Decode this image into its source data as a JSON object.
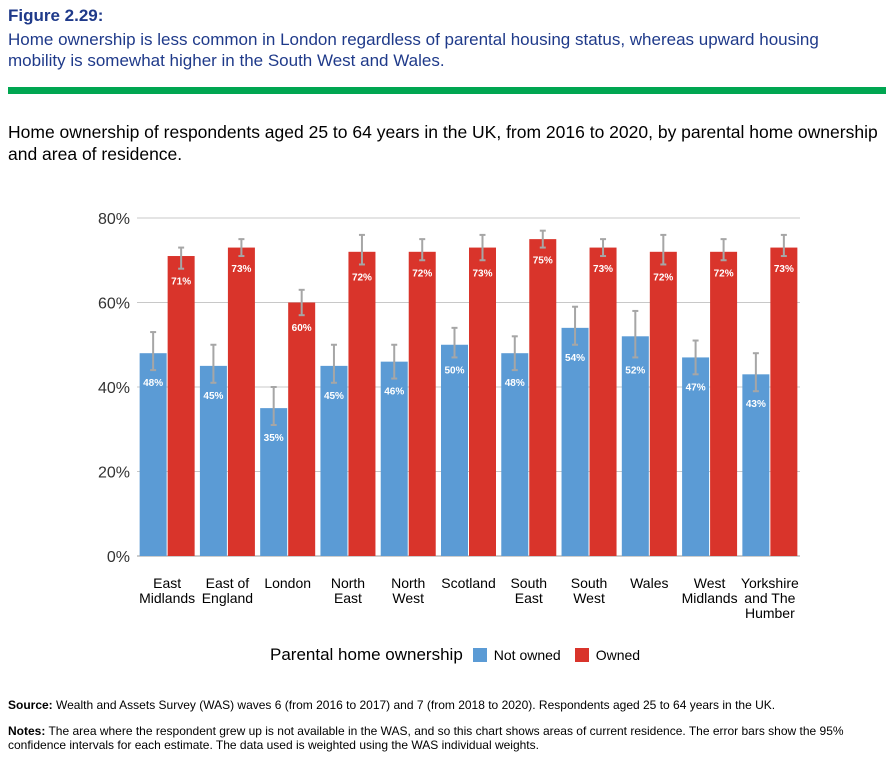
{
  "figure": {
    "label": "Figure 2.29:",
    "title": "Home ownership is less common in London regardless of parental housing status, whereas upward housing mobility is somewhat higher in the South West and Wales."
  },
  "chart_title": "Home ownership of respondents aged 25 to 64 years in the UK, from 2016 to 2020, by parental home ownership and area of residence.",
  "chart_data": {
    "type": "bar",
    "categories": [
      [
        "East",
        "Midlands"
      ],
      [
        "East of",
        "England"
      ],
      [
        "London"
      ],
      [
        "North",
        "East"
      ],
      [
        "North",
        "West"
      ],
      [
        "Scotland"
      ],
      [
        "South",
        "East"
      ],
      [
        "South",
        "West"
      ],
      [
        "Wales"
      ],
      [
        "West",
        "Midlands"
      ],
      [
        "Yorkshire",
        "and The",
        "Humber"
      ]
    ],
    "series": [
      {
        "name": "Not owned",
        "color": "#5b9bd5",
        "values": [
          48,
          45,
          35,
          45,
          46,
          50,
          48,
          54,
          52,
          47,
          43
        ],
        "labels": [
          "48%",
          "45%",
          "35%",
          "45%",
          "46%",
          "50%",
          "48%",
          "54%",
          "52%",
          "47%",
          "43%"
        ],
        "ci_low": [
          44,
          41,
          31,
          41,
          42,
          47,
          44,
          50,
          47,
          43,
          39
        ],
        "ci_high": [
          53,
          50,
          40,
          50,
          50,
          54,
          52,
          59,
          58,
          51,
          48
        ]
      },
      {
        "name": "Owned",
        "color": "#d9342b",
        "values": [
          71,
          73,
          60,
          72,
          72,
          73,
          75,
          73,
          72,
          72,
          73
        ],
        "labels": [
          "71%",
          "73%",
          "60%",
          "72%",
          "72%",
          "73%",
          "75%",
          "73%",
          "72%",
          "72%",
          "73%"
        ],
        "ci_low": [
          68,
          71,
          57,
          69,
          70,
          70,
          73,
          71,
          69,
          70,
          71
        ],
        "ci_high": [
          73,
          75,
          63,
          76,
          75,
          76,
          77,
          75,
          76,
          75,
          76
        ]
      }
    ],
    "yticks": [
      "0%",
      "20%",
      "40%",
      "60%",
      "80%"
    ],
    "ytick_values": [
      0,
      20,
      40,
      60,
      80
    ],
    "ylim": [
      0,
      80
    ],
    "grid": true,
    "legend_title": "Parental home ownership",
    "legend_position": "bottom"
  },
  "source": {
    "label": "Source:",
    "text": " Wealth and Assets Survey (WAS) waves 6 (from 2016 to 2017) and 7 (from 2018 to 2020). Respondents aged 25 to 64 years in the UK."
  },
  "notes": {
    "label": "Notes:",
    "text": " The area where the respondent grew up is not available in the WAS, and so this chart shows areas of current residence. The error bars show the 95% confidence intervals for each estimate. The data used is weighted using the WAS individual weights."
  }
}
